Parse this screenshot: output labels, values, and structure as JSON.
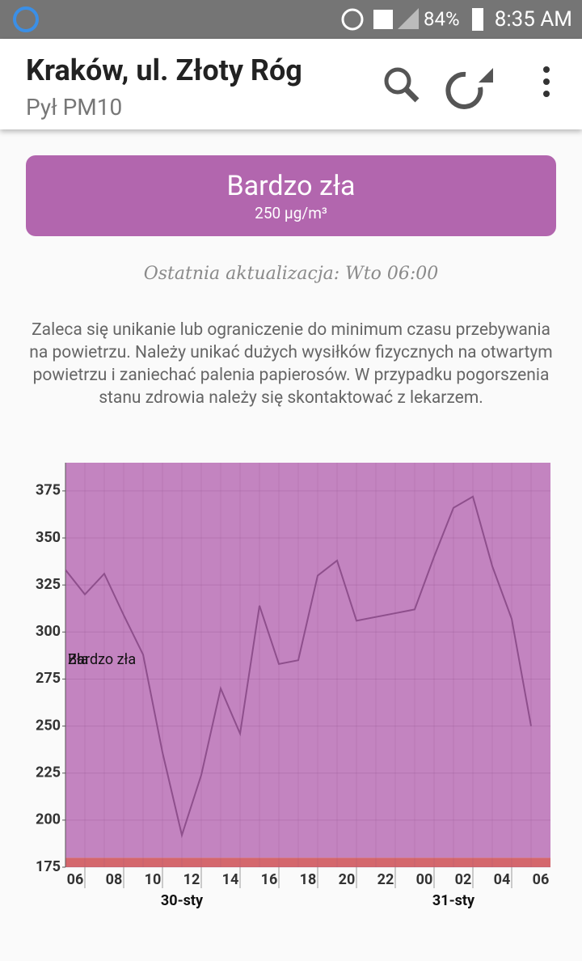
{
  "status_bar": {
    "battery": "84%",
    "time": "8:35 AM"
  },
  "app_bar": {
    "title": "Kraków, ul. Złoty Róg",
    "subtitle": "Pył PM10"
  },
  "status_card": {
    "level": "Bardzo zła",
    "value": "250 µg/m³"
  },
  "last_update": "Ostatnia aktualizacja: Wto 06:00",
  "advice": "Zaleca się unikanie lub ograniczenie do minimum czasu przebywania na powietrzu. Należy unikać dużych wysiłków fizycznych na otwartym powietrzu i zaniechać palenia papierosów. W przypadku pogorszenia stanu zdrowia należy się skontaktować z lekarzem.",
  "chart_data": {
    "type": "line",
    "categories": [
      "06",
      null,
      "08",
      null,
      "10",
      null,
      "12",
      null,
      "14",
      null,
      "16",
      null,
      "18",
      null,
      "20",
      null,
      "22",
      null,
      "00",
      null,
      "02",
      null,
      "04",
      null,
      "06"
    ],
    "values": [
      333,
      320,
      331,
      309,
      288,
      236,
      192,
      224,
      270,
      246,
      314,
      283,
      285,
      330,
      338,
      306,
      308,
      310,
      312,
      340,
      366,
      372,
      335,
      307,
      250
    ],
    "color": "#8e4f8c",
    "day_labels": [
      "30-sty",
      "31-sty"
    ],
    "bands": [
      {
        "name": "Bardzo zła",
        "from": 180,
        "to": 390,
        "color": "#c384c0"
      },
      {
        "name": "Zła",
        "from": 175,
        "to": 180,
        "color": "#d4676d"
      }
    ],
    "ylim": [
      175,
      390
    ],
    "yticks": [
      175,
      200,
      225,
      250,
      275,
      300,
      325,
      350,
      375
    ],
    "grid": true
  }
}
